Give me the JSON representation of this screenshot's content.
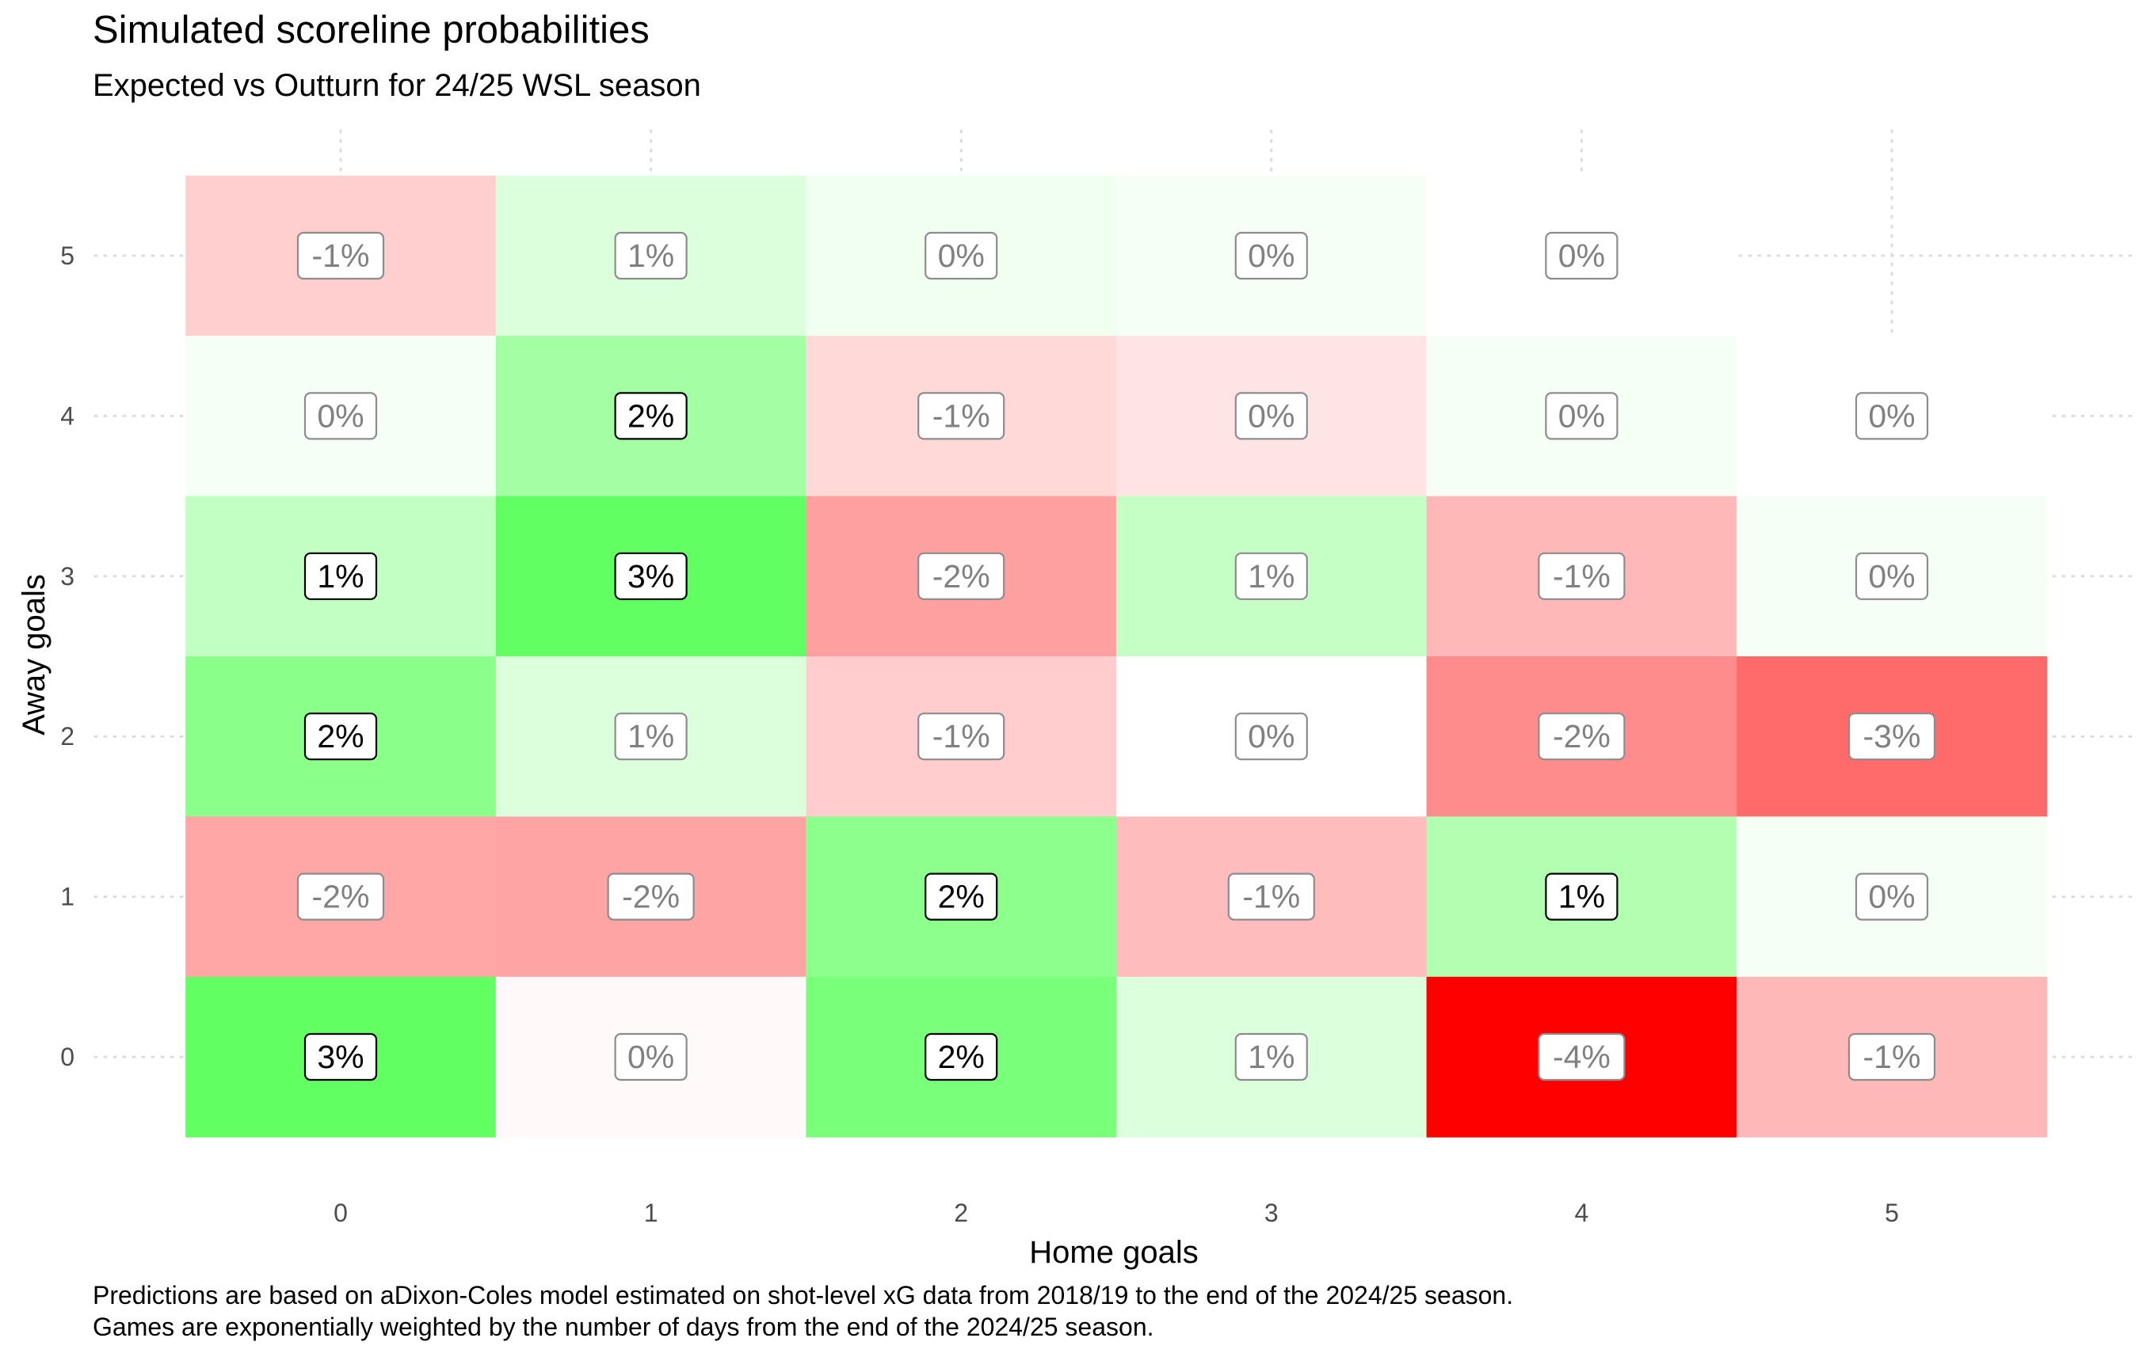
{
  "title": "Simulated scoreline probabilities",
  "subtitle": "Expected vs Outturn for 24/25 WSL season",
  "caption": [
    "Predictions are based on aDixon-Coles model estimated on shot-level xG data from 2018/19 to the end of the 2024/25 season.",
    "Games are exponentially weighted by the number of days from the end of the 2024/25 season."
  ],
  "chart_data": {
    "type": "heatmap",
    "xlabel": "Home goals",
    "ylabel": "Away goals",
    "x_categories": [
      "0",
      "1",
      "2",
      "3",
      "4",
      "5"
    ],
    "y_categories": [
      "0",
      "1",
      "2",
      "3",
      "4",
      "5"
    ],
    "grid": true,
    "legend": "none",
    "colors": {
      "positive": "#00ff00",
      "negative": "#ff0000",
      "neutral": "#ffffff"
    },
    "cells": [
      {
        "home": 0,
        "away": 5,
        "value": -0.6,
        "label": "-1%",
        "fill": "#ffcece",
        "emphasis": false
      },
      {
        "home": 1,
        "away": 5,
        "value": 0.5,
        "label": "1%",
        "fill": "#dcffdc",
        "emphasis": false
      },
      {
        "home": 2,
        "away": 5,
        "value": 0.2,
        "label": "0%",
        "fill": "#f0fff0",
        "emphasis": false
      },
      {
        "home": 3,
        "away": 5,
        "value": 0.1,
        "label": "0%",
        "fill": "#f6fff6",
        "emphasis": false
      },
      {
        "home": 4,
        "away": 5,
        "value": 0.0,
        "label": "0%",
        "fill": "#ffffff",
        "emphasis": false
      },
      {
        "home": 0,
        "away": 4,
        "value": 0.1,
        "label": "0%",
        "fill": "#f6fff6",
        "emphasis": false
      },
      {
        "home": 1,
        "away": 4,
        "value": 1.5,
        "label": "2%",
        "fill": "#a4ffa4",
        "emphasis": true
      },
      {
        "home": 2,
        "away": 4,
        "value": -0.5,
        "label": "-1%",
        "fill": "#ffd8d8",
        "emphasis": false
      },
      {
        "home": 3,
        "away": 4,
        "value": -0.4,
        "label": "0%",
        "fill": "#ffe4e4",
        "emphasis": false
      },
      {
        "home": 4,
        "away": 4,
        "value": 0.1,
        "label": "0%",
        "fill": "#f6fff6",
        "emphasis": false
      },
      {
        "home": 5,
        "away": 4,
        "value": 0.0,
        "label": "0%",
        "fill": "#ffffff",
        "emphasis": false
      },
      {
        "home": 0,
        "away": 3,
        "value": 0.9,
        "label": "1%",
        "fill": "#c2ffc2",
        "emphasis": true
      },
      {
        "home": 1,
        "away": 3,
        "value": 2.6,
        "label": "3%",
        "fill": "#62ff62",
        "emphasis": true
      },
      {
        "home": 2,
        "away": 3,
        "value": -1.5,
        "label": "-2%",
        "fill": "#ffa0a0",
        "emphasis": false
      },
      {
        "home": 3,
        "away": 3,
        "value": 0.9,
        "label": "1%",
        "fill": "#c6ffc6",
        "emphasis": false
      },
      {
        "home": 4,
        "away": 3,
        "value": -1.1,
        "label": "-1%",
        "fill": "#ffb8b8",
        "emphasis": false
      },
      {
        "home": 5,
        "away": 3,
        "value": 0.1,
        "label": "0%",
        "fill": "#f6fff6",
        "emphasis": false
      },
      {
        "home": 0,
        "away": 2,
        "value": 1.9,
        "label": "2%",
        "fill": "#8aff8a",
        "emphasis": true
      },
      {
        "home": 1,
        "away": 2,
        "value": 0.5,
        "label": "1%",
        "fill": "#dcffdc",
        "emphasis": false
      },
      {
        "home": 2,
        "away": 2,
        "value": -0.8,
        "label": "-1%",
        "fill": "#ffcdcd",
        "emphasis": false
      },
      {
        "home": 3,
        "away": 2,
        "value": 0.0,
        "label": "0%",
        "fill": "#ffffff",
        "emphasis": false
      },
      {
        "home": 4,
        "away": 2,
        "value": -1.9,
        "label": "-2%",
        "fill": "#ff8c8c",
        "emphasis": false
      },
      {
        "home": 5,
        "away": 2,
        "value": -2.6,
        "label": "-3%",
        "fill": "#ff6a6a",
        "emphasis": false
      },
      {
        "home": 0,
        "away": 1,
        "value": -1.6,
        "label": "-2%",
        "fill": "#ffa6a6",
        "emphasis": false
      },
      {
        "home": 1,
        "away": 1,
        "value": -1.6,
        "label": "-2%",
        "fill": "#ffa4a4",
        "emphasis": false
      },
      {
        "home": 2,
        "away": 1,
        "value": 2.0,
        "label": "2%",
        "fill": "#8cff8c",
        "emphasis": true
      },
      {
        "home": 3,
        "away": 1,
        "value": -1.1,
        "label": "-1%",
        "fill": "#ffbcbc",
        "emphasis": false
      },
      {
        "home": 4,
        "away": 1,
        "value": 1.3,
        "label": "1%",
        "fill": "#b2ffb2",
        "emphasis": true
      },
      {
        "home": 5,
        "away": 1,
        "value": 0.1,
        "label": "0%",
        "fill": "#f6fff6",
        "emphasis": false
      },
      {
        "home": 0,
        "away": 0,
        "value": 2.6,
        "label": "3%",
        "fill": "#62ff62",
        "emphasis": true
      },
      {
        "home": 1,
        "away": 0,
        "value": 0.0,
        "label": "0%",
        "fill": "#fff9f9",
        "emphasis": false
      },
      {
        "home": 2,
        "away": 0,
        "value": 2.3,
        "label": "2%",
        "fill": "#7aff7a",
        "emphasis": true
      },
      {
        "home": 3,
        "away": 0,
        "value": 0.5,
        "label": "1%",
        "fill": "#dcffdc",
        "emphasis": false
      },
      {
        "home": 4,
        "away": 0,
        "value": -4.0,
        "label": "-4%",
        "fill": "#ff0000",
        "emphasis": false
      },
      {
        "home": 5,
        "away": 0,
        "value": -1.1,
        "label": "-1%",
        "fill": "#ffb8b8",
        "emphasis": false
      }
    ]
  }
}
